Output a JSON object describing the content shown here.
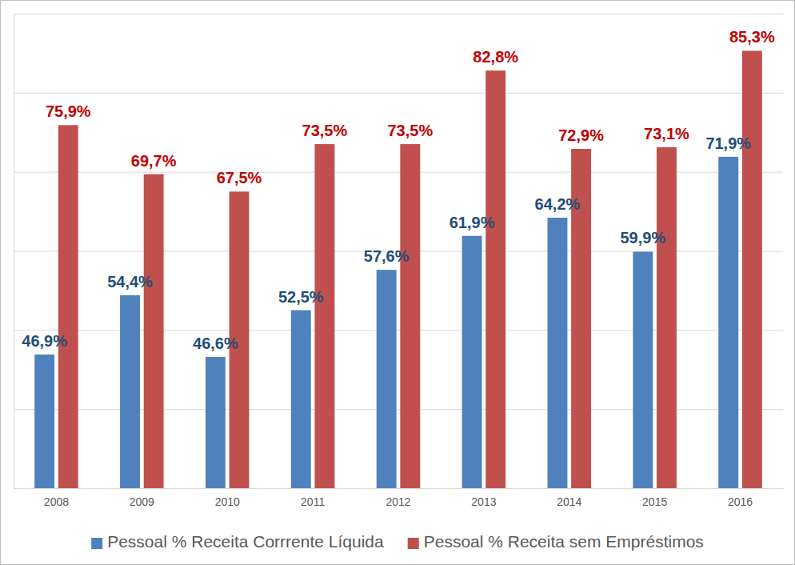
{
  "chart_data": {
    "type": "bar",
    "categories": [
      "2008",
      "2009",
      "2010",
      "2011",
      "2012",
      "2013",
      "2014",
      "2015",
      "2016"
    ],
    "series": [
      {
        "name": "Pessoal % Receita Corrrente Líquida",
        "color": "#4f81bd",
        "values": [
          46.9,
          54.4,
          46.6,
          52.5,
          57.6,
          61.9,
          64.2,
          59.9,
          71.9
        ],
        "value_labels": [
          "46,9%",
          "54,4%",
          "46,6%",
          "52,5%",
          "57,6%",
          "61,9%",
          "64,2%",
          "59,9%",
          "71,9%"
        ]
      },
      {
        "name": "Pessoal % Receita sem Empréstimos",
        "color": "#c0504d",
        "values": [
          75.9,
          69.7,
          67.5,
          73.5,
          73.5,
          82.8,
          72.9,
          73.1,
          85.3
        ],
        "value_labels": [
          "75,9%",
          "69,7%",
          "67,5%",
          "73,5%",
          "73,5%",
          "82,8%",
          "72,9%",
          "73,1%",
          "85,3%"
        ]
      }
    ],
    "ylim": [
      30,
      90
    ],
    "yticks": [
      30,
      40,
      50,
      60,
      70,
      80,
      90
    ],
    "grid": true,
    "legend": "bottom",
    "data_labels": true,
    "tick_labels": "x"
  }
}
